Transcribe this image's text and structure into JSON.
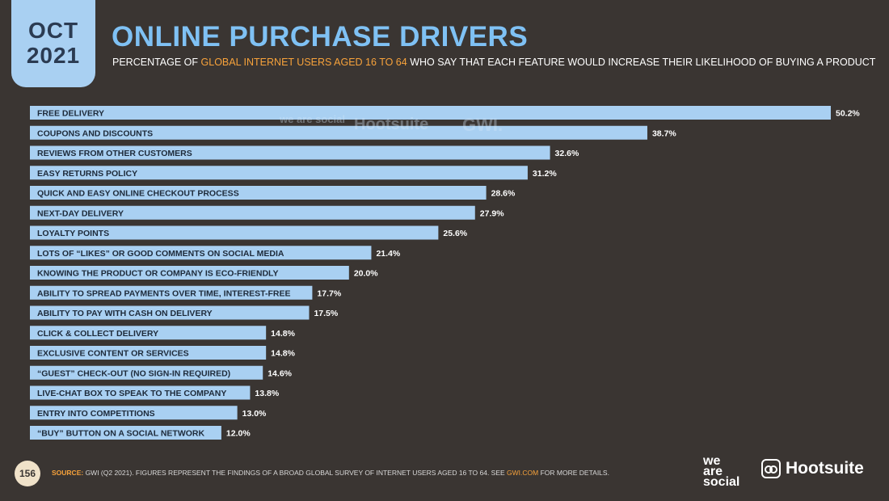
{
  "badge": {
    "month": "OCT",
    "year": "2021"
  },
  "header": {
    "title": "ONLINE PURCHASE DRIVERS",
    "subtitle_pre": "PERCENTAGE OF ",
    "subtitle_hl1": "GLOBAL INTERNET USERS AGED ",
    "subtitle_hl2": "16 TO 64",
    "subtitle_post": " WHO SAY THAT EACH FEATURE WOULD INCREASE THEIR LIKELIHOOD OF BUYING A PRODUCT"
  },
  "colors": {
    "background": "#3a3532",
    "bar": "#a9d0f2",
    "title": "#7fc1f4",
    "highlight": "#f7a23b"
  },
  "chart_data": {
    "type": "bar",
    "orientation": "horizontal",
    "categories": [
      "FREE DELIVERY",
      "COUPONS AND DISCOUNTS",
      "REVIEWS FROM OTHER CUSTOMERS",
      "EASY RETURNS POLICY",
      "QUICK AND EASY ONLINE CHECKOUT PROCESS",
      "NEXT-DAY DELIVERY",
      "LOYALTY POINTS",
      "LOTS OF “LIKES” OR GOOD COMMENTS ON SOCIAL MEDIA",
      "KNOWING THE PRODUCT OR COMPANY IS ECO-FRIENDLY",
      "ABILITY TO SPREAD PAYMENTS OVER TIME, INTEREST-FREE",
      "ABILITY TO PAY WITH CASH ON DELIVERY",
      "CLICK & COLLECT DELIVERY",
      "EXCLUSIVE CONTENT OR SERVICES",
      "“GUEST” CHECK-OUT (NO SIGN-IN REQUIRED)",
      "LIVE-CHAT BOX TO SPEAK TO THE COMPANY",
      "ENTRY INTO COMPETITIONS",
      "“BUY” BUTTON ON A SOCIAL NETWORK"
    ],
    "values": [
      50.2,
      38.7,
      32.6,
      31.2,
      28.6,
      27.9,
      25.6,
      21.4,
      20.0,
      17.7,
      17.5,
      14.8,
      14.8,
      14.6,
      13.8,
      13.0,
      12.0
    ],
    "value_labels": [
      "50.2%",
      "38.7%",
      "32.6%",
      "31.2%",
      "28.6%",
      "27.9%",
      "25.6%",
      "21.4%",
      "20.0%",
      "17.7%",
      "17.5%",
      "14.8%",
      "14.8%",
      "14.6%",
      "13.8%",
      "13.0%",
      "12.0%"
    ],
    "xlim": [
      0,
      50.2
    ],
    "grid": false,
    "legend": "none"
  },
  "watermark": {
    "brand1": "we are social",
    "brand2": "Hootsuite",
    "brand3": "GWI."
  },
  "footer": {
    "page": "156",
    "source_key": "SOURCE:",
    "source_text": " GWI (Q2 2021). FIGURES REPRESENT THE FINDINGS OF A BROAD GLOBAL SURVEY OF INTERNET USERS AGED 16 TO 64. SEE ",
    "source_url": "GWI.COM",
    "source_tail": " FOR MORE DETAILS."
  },
  "logos": {
    "was_line1": "we",
    "was_line2": "are",
    "was_line3": "social",
    "hootsuite": "Hootsuite"
  }
}
